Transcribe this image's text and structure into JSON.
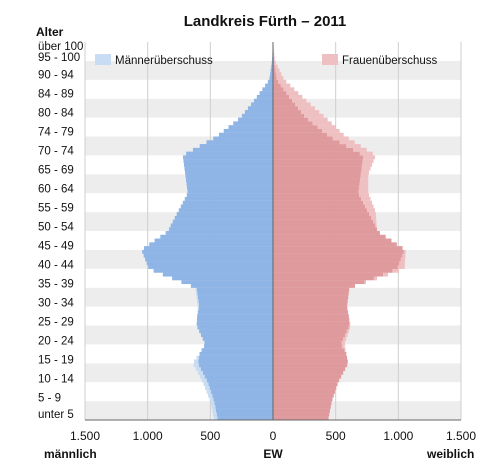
{
  "chart_data": {
    "type": "bar",
    "title": "Landkreis Fürth – 2011",
    "ylabel": "Alter",
    "xlabel": "EW",
    "left_label": "männlich",
    "right_label": "weiblich",
    "xlim": [
      -1500,
      1500
    ],
    "x_ticks": [
      -1500,
      -1000,
      -500,
      0,
      500,
      1000,
      1500
    ],
    "x_tick_labels": [
      "1.500",
      "1.000",
      "500",
      "0",
      "500",
      "1.000",
      "1.500"
    ],
    "age_range": [
      0,
      100
    ],
    "age_tick_labels": [
      "über 100",
      "95 - 100",
      "90 - 94",
      "84 - 89",
      "80 - 84",
      "74 - 79",
      "70 - 74",
      "65 - 69",
      "60 - 64",
      "55 - 59",
      "50 - 54",
      "45 - 49",
      "40 - 44",
      "35 - 39",
      "30 - 34",
      "25 - 29",
      "20 - 24",
      "15 - 19",
      "10 - 14",
      "5 - 9",
      "unter 5"
    ],
    "legend": [
      {
        "name": "Männerüberschuss",
        "color": "#c8dcf3",
        "position": "top-left"
      },
      {
        "name": "Frauenüberschuss",
        "color": "#efc0c2",
        "position": "top-right"
      }
    ],
    "colors": {
      "male": "#8fb4e6",
      "female": "#df9a9d",
      "male_excess": "#c8dcf3",
      "female_excess": "#efc0c2",
      "band": "#ededed"
    },
    "age": [
      0,
      5,
      10,
      15,
      20,
      25,
      30,
      35,
      40,
      45,
      50,
      55,
      60,
      65,
      70,
      75,
      80,
      85,
      90,
      95,
      100
    ],
    "series": [
      {
        "name": "männlich",
        "values": [
          470,
          500,
          560,
          640,
          540,
          610,
          600,
          620,
          990,
          1050,
          840,
          760,
          680,
          700,
          720,
          450,
          260,
          140,
          30,
          8,
          1
        ]
      },
      {
        "name": "weiblich",
        "values": [
          440,
          470,
          520,
          600,
          570,
          620,
          590,
          610,
          1050,
          1060,
          830,
          820,
          760,
          760,
          820,
          580,
          420,
          250,
          90,
          15,
          2
        ]
      }
    ]
  }
}
